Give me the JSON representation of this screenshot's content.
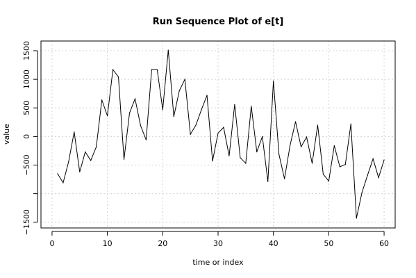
{
  "chart_data": {
    "type": "line",
    "title": "Run Sequence Plot of e[t]",
    "xlabel": "time or index",
    "ylabel": "value",
    "xlim": [
      -2,
      62
    ],
    "ylim": [
      -1600,
      1670
    ],
    "xticks": [
      0,
      10,
      20,
      30,
      40,
      50,
      60
    ],
    "yticks": [
      -1500,
      -1000,
      -500,
      0,
      500,
      1000,
      1500
    ],
    "ytick_labels": [
      "−1500",
      "",
      "−500",
      "0",
      "500",
      "1000",
      "1500"
    ],
    "grid": true,
    "series": [
      {
        "x": [
          1,
          2,
          3,
          4,
          5,
          6,
          7,
          8,
          9,
          10,
          11,
          12,
          13,
          14,
          15,
          16,
          17,
          18,
          19,
          20,
          21,
          22,
          23,
          24,
          25,
          26,
          27,
          28,
          29,
          30,
          31,
          32,
          33,
          34,
          35,
          36,
          37,
          38,
          39,
          40,
          41,
          42,
          43,
          44,
          45,
          46,
          47,
          48,
          49,
          50,
          51,
          52,
          53,
          54,
          55,
          56,
          57,
          58,
          59,
          60
        ],
        "values": [
          -650,
          -810,
          -440,
          80,
          -620,
          -270,
          -420,
          -180,
          640,
          360,
          1170,
          1040,
          -400,
          410,
          660,
          190,
          -60,
          1170,
          1170,
          470,
          1510,
          350,
          800,
          1000,
          40,
          200,
          470,
          720,
          -430,
          60,
          160,
          -340,
          560,
          -370,
          -470,
          530,
          -270,
          0,
          -790,
          970,
          -310,
          -740,
          -160,
          260,
          -180,
          -10,
          -470,
          200,
          -660,
          -780,
          -160,
          -530,
          -490,
          220,
          -1430,
          -980,
          -680,
          -390,
          -720,
          -410
        ]
      }
    ]
  }
}
